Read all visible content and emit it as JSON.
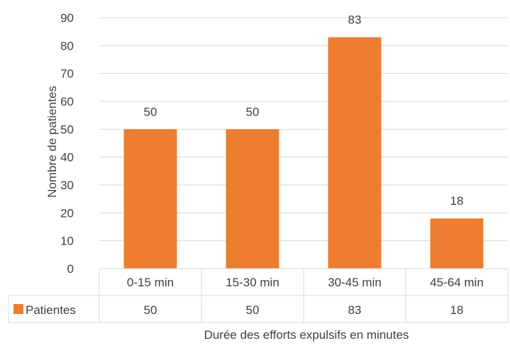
{
  "chart_data": {
    "type": "bar",
    "title": "",
    "xlabel": "Durée des efforts expulsifs en minutes",
    "ylabel": "Nombre de patientes",
    "categories": [
      "0-15 min",
      "15-30 min",
      "30-45 min",
      "45-64 min"
    ],
    "series": [
      {
        "name": "Patientes",
        "values": [
          50,
          50,
          83,
          18
        ],
        "color": "#ED7D31"
      }
    ],
    "ylim": [
      0,
      90
    ],
    "yticks": [
      0,
      10,
      20,
      30,
      40,
      50,
      60,
      70,
      80,
      90
    ],
    "grid": true,
    "data_labels": true,
    "data_table": true,
    "legend": "data-table"
  }
}
